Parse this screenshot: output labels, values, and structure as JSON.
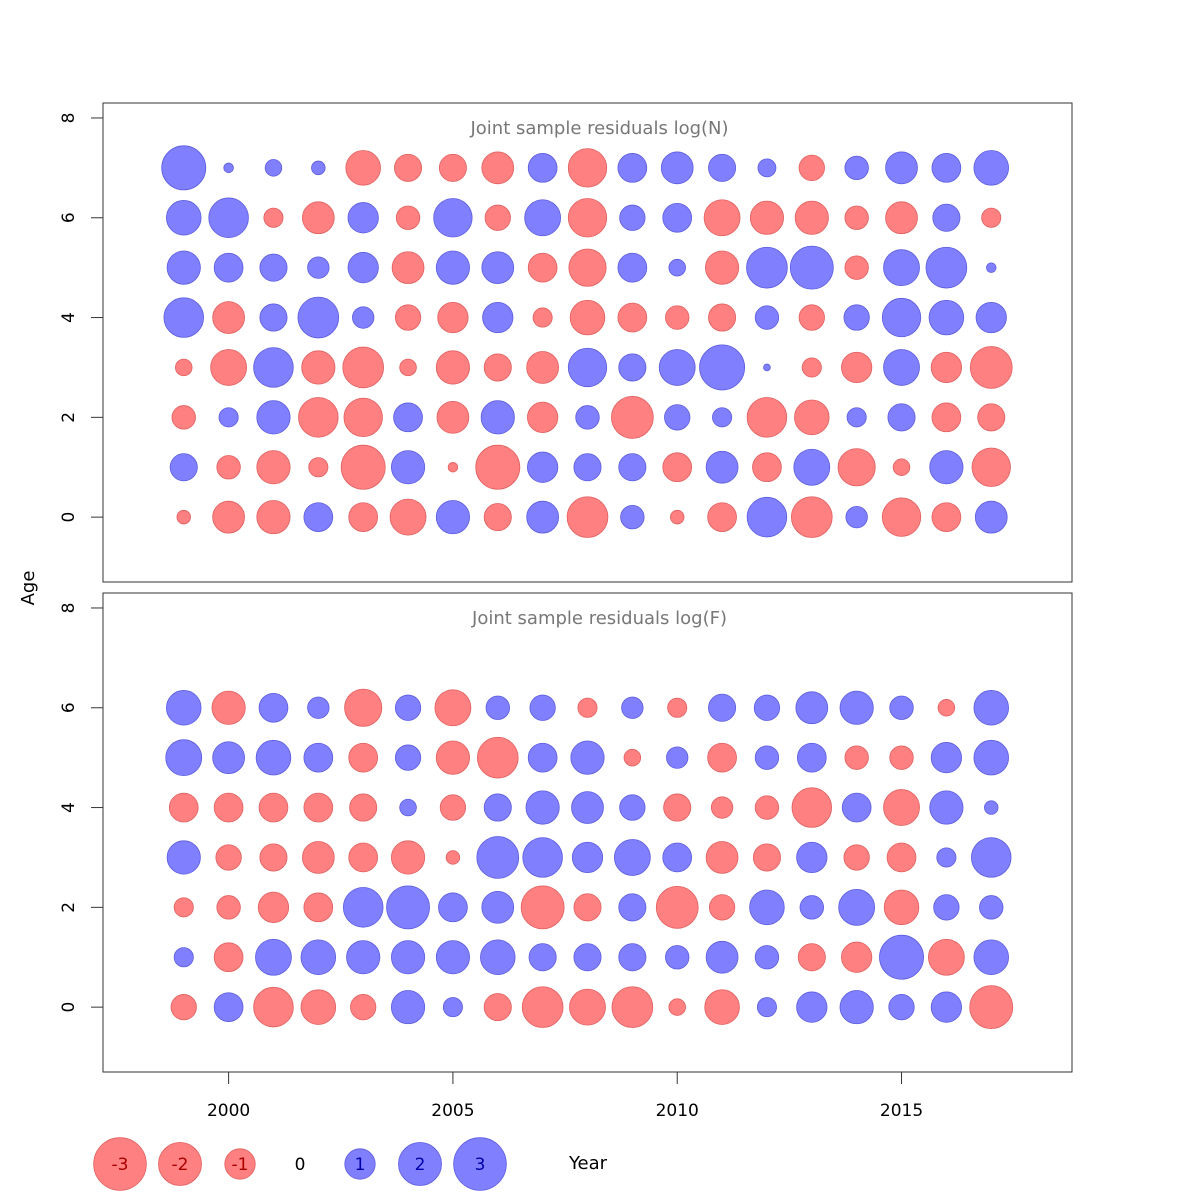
{
  "colors": {
    "positive": "#8080ff",
    "negative": "#ff8080",
    "positive_edge": "#5c5cdd",
    "negative_edge": "#e06060"
  },
  "chart_data": {
    "type": "scatter",
    "variant": "bubble",
    "ylabel": "Age",
    "xlabel": "Year",
    "xlim": [
      1997.2,
      2018.8
    ],
    "x_ticks": [
      2000,
      2005,
      2010,
      2015
    ],
    "years": [
      1999,
      2000,
      2001,
      2002,
      2003,
      2004,
      2005,
      2006,
      2007,
      2008,
      2009,
      2010,
      2011,
      2012,
      2013,
      2014,
      2015,
      2016,
      2017
    ],
    "panels": [
      {
        "title": "Joint sample residuals log(N)",
        "ylim": [
          -1.3,
          8.3
        ],
        "y_ticks": [
          0,
          2,
          4,
          6,
          8
        ],
        "ages": [
          0,
          1,
          2,
          3,
          4,
          5,
          6,
          7
        ],
        "residuals": [
          [
            -0.2,
            -1.1,
            -1.2,
            0.9,
            -0.9,
            -1.4,
            1.2,
            -0.8,
            1.1,
            -1.8,
            0.6,
            -0.2,
            -0.9,
            1.7,
            -1.8,
            0.5,
            -1.6,
            -0.9,
            1.1
          ],
          [
            0.8,
            -0.6,
            -1.2,
            -0.4,
            -2.1,
            1.2,
            -0.1,
            -2.1,
            1.0,
            0.8,
            0.8,
            -0.9,
            1.1,
            -0.9,
            1.4,
            -1.5,
            -0.3,
            1.2,
            -1.6
          ],
          [
            -0.6,
            0.4,
            1.2,
            -1.7,
            -1.6,
            0.9,
            -1.1,
            1.2,
            -1.0,
            0.6,
            -1.9,
            0.7,
            0.4,
            -1.7,
            -1.3,
            0.4,
            0.8,
            -0.9,
            -0.8
          ],
          [
            -0.3,
            -1.4,
            1.7,
            -1.2,
            -1.8,
            -0.3,
            -1.2,
            -0.8,
            -1.1,
            1.6,
            0.8,
            1.4,
            2.2,
            0.05,
            -0.4,
            -1.0,
            1.4,
            -1.0,
            -1.9
          ],
          [
            1.7,
            -1.1,
            0.8,
            1.8,
            0.5,
            -0.7,
            -1.0,
            1.0,
            -0.4,
            -1.3,
            -0.9,
            -0.6,
            -0.8,
            0.6,
            -0.7,
            0.7,
            1.6,
            1.3,
            1.0
          ],
          [
            1.2,
            0.9,
            0.8,
            0.5,
            1.0,
            -1.1,
            1.2,
            1.1,
            -0.9,
            -1.5,
            0.9,
            0.3,
            -1.2,
            1.8,
            2.0,
            -0.6,
            1.4,
            1.8,
            0.1
          ],
          [
            1.3,
            1.7,
            -0.4,
            -1.1,
            1.0,
            -0.6,
            1.6,
            -0.7,
            1.4,
            -1.6,
            0.7,
            0.9,
            -1.4,
            -1.2,
            -1.2,
            -0.6,
            -1.1,
            0.8,
            -0.4
          ],
          [
            2.1,
            0.1,
            0.3,
            0.2,
            -1.3,
            -0.8,
            -0.8,
            -1.1,
            0.9,
            -1.6,
            0.9,
            1.1,
            0.8,
            0.35,
            -0.7,
            0.6,
            1.1,
            0.9,
            1.3
          ]
        ]
      },
      {
        "title": "Joint sample residuals log(F)",
        "ylim": [
          -1.3,
          8.3
        ],
        "y_ticks": [
          0,
          2,
          4,
          6,
          8
        ],
        "ages": [
          0,
          1,
          2,
          3,
          4,
          5,
          6
        ],
        "residuals": [
          [
            -0.7,
            0.9,
            -1.7,
            -1.3,
            -0.7,
            1.2,
            0.4,
            -0.8,
            -1.8,
            -1.4,
            -1.8,
            -0.3,
            -1.3,
            0.4,
            1.0,
            1.2,
            0.7,
            1.0,
            -2.0
          ],
          [
            0.4,
            -0.9,
            1.4,
            1.3,
            1.2,
            1.2,
            1.2,
            1.3,
            0.8,
            0.8,
            0.8,
            0.6,
            1.1,
            0.6,
            -0.8,
            -1.0,
            2.1,
            -1.4,
            1.3
          ],
          [
            -0.4,
            -0.6,
            -1.0,
            -0.9,
            1.7,
            2.0,
            0.9,
            1.1,
            -2.0,
            -0.8,
            0.8,
            -1.9,
            -0.7,
            1.3,
            0.6,
            1.4,
            -1.3,
            0.7,
            0.6
          ],
          [
            1.2,
            -0.7,
            -0.8,
            -1.1,
            -0.9,
            -1.2,
            -0.2,
            1.9,
            1.7,
            1.0,
            1.4,
            0.9,
            -1.1,
            -0.8,
            1.0,
            -0.7,
            -0.9,
            0.4,
            1.7
          ],
          [
            -0.9,
            -0.9,
            -0.9,
            -0.9,
            -0.8,
            0.3,
            -0.7,
            0.8,
            1.2,
            1.1,
            0.7,
            -0.8,
            -0.5,
            -0.6,
            -1.7,
            0.9,
            -1.4,
            1.2,
            0.2
          ],
          [
            1.4,
            1.1,
            1.3,
            0.9,
            -0.9,
            0.7,
            -1.2,
            -1.8,
            0.9,
            1.2,
            -0.3,
            0.5,
            -0.9,
            0.6,
            0.9,
            -0.6,
            -0.6,
            1.0,
            1.3
          ],
          [
            1.3,
            -1.2,
            0.9,
            0.5,
            -1.5,
            0.7,
            -1.4,
            0.6,
            0.7,
            -0.4,
            0.5,
            -0.4,
            0.8,
            0.7,
            1.1,
            1.2,
            0.6,
            -0.3,
            1.3
          ]
        ]
      }
    ],
    "legend": {
      "position": "bottom",
      "values": [
        -3,
        -2,
        -1,
        0,
        1,
        2,
        3
      ],
      "labels": [
        "-3",
        "-2",
        "-1",
        "0",
        "1",
        "2",
        "3"
      ]
    }
  }
}
